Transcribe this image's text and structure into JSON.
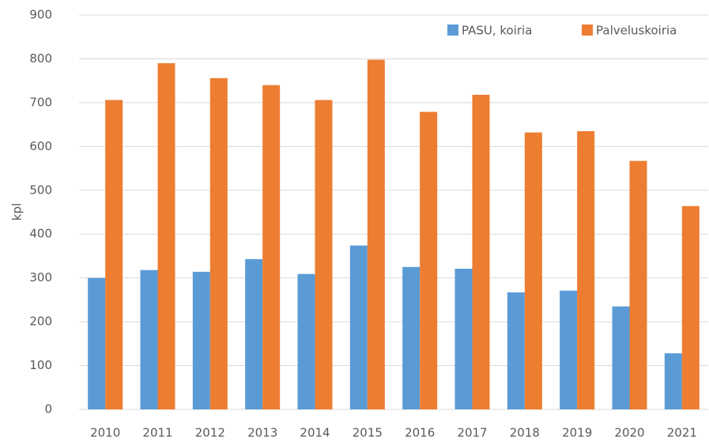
{
  "chart_data": {
    "type": "bar",
    "y_label": "kpl",
    "categories": [
      "2010",
      "2011",
      "2012",
      "2013",
      "2014",
      "2015",
      "2016",
      "2017",
      "2018",
      "2019",
      "2020",
      "2021"
    ],
    "series": [
      {
        "name": "PASU, koiria",
        "color": "#5b9bd5",
        "values": [
          300,
          318,
          314,
          343,
          309,
          374,
          325,
          321,
          267,
          271,
          235,
          128
        ]
      },
      {
        "name": "Palveluskoiria",
        "color": "#ed7d31",
        "values": [
          706,
          790,
          756,
          740,
          706,
          798,
          679,
          718,
          632,
          635,
          567,
          464
        ]
      }
    ],
    "ylim": [
      0,
      900
    ],
    "yticks": [
      0,
      100,
      200,
      300,
      400,
      500,
      600,
      700,
      800,
      900
    ],
    "grid": true,
    "legend": "top-right"
  }
}
